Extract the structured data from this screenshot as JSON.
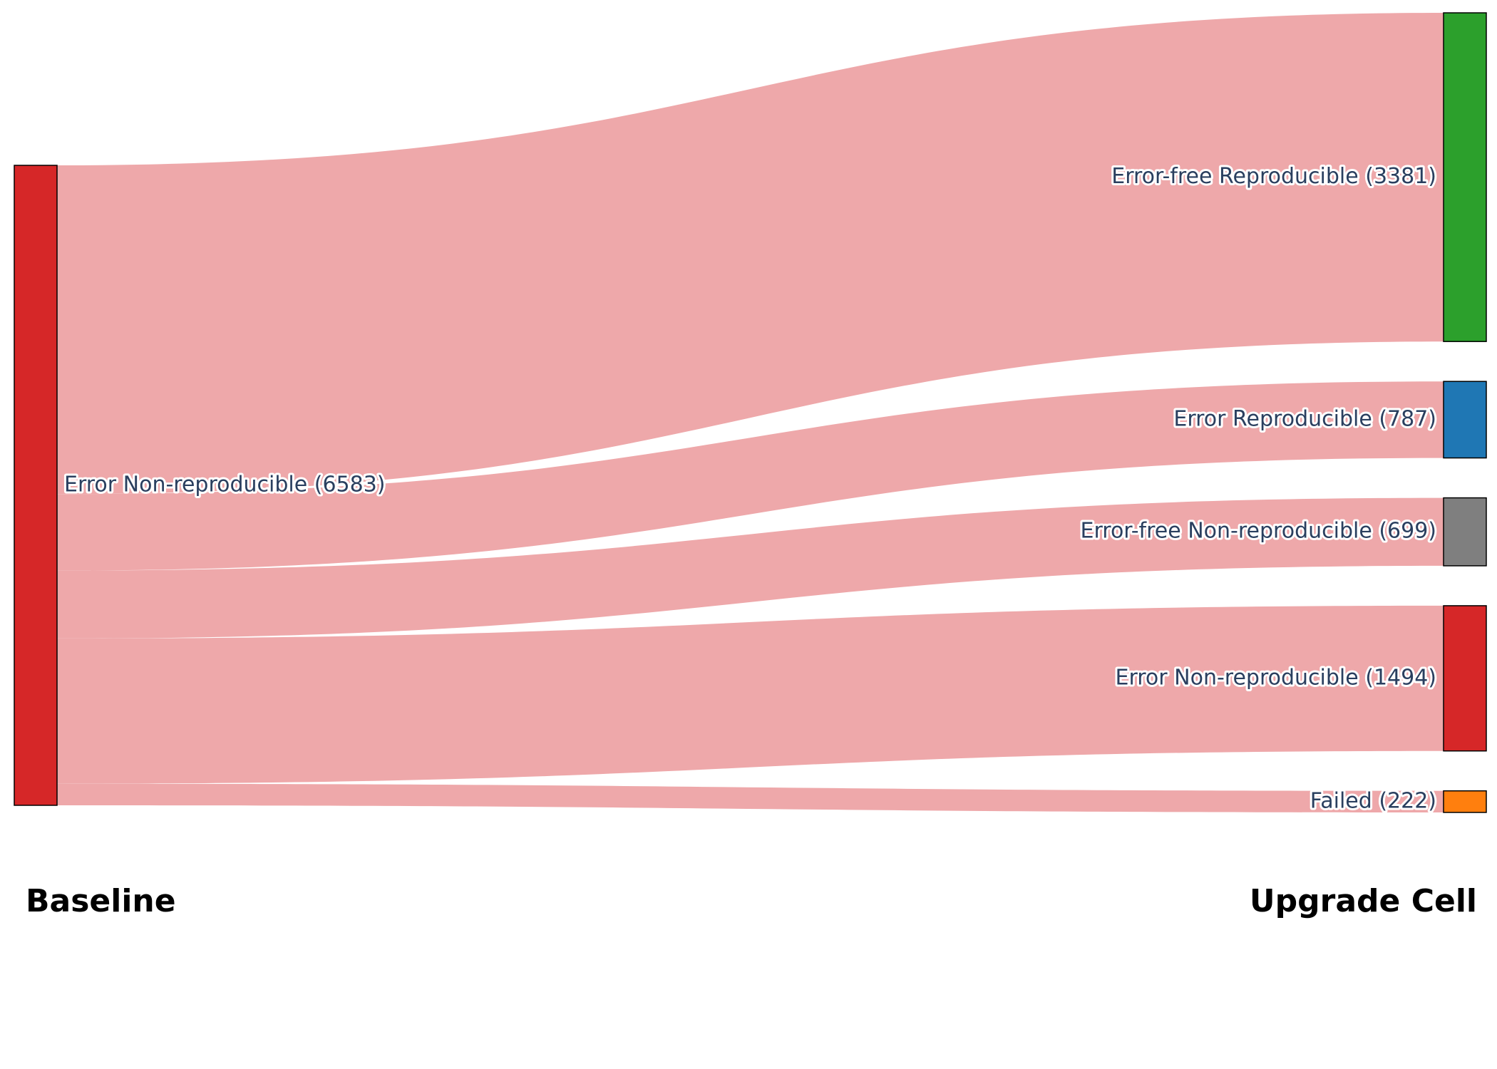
{
  "columns": {
    "left": "Baseline",
    "right": "Upgrade Cell"
  },
  "link_color": "#eea8aa",
  "nodes": [
    {
      "id": "src",
      "label": "Error Non-reproducible (6583)",
      "color": "#d62728",
      "side": "left"
    },
    {
      "id": "t1",
      "label": "Error-free Reproducible (3381)",
      "color": "#2ca02c",
      "side": "right"
    },
    {
      "id": "t2",
      "label": "Error Reproducible (787)",
      "color": "#1f77b4",
      "side": "right"
    },
    {
      "id": "t3",
      "label": "Error-free Non-reproducible (699)",
      "color": "#7f7f7f",
      "side": "right"
    },
    {
      "id": "t4",
      "label": "Error Non-reproducible (1494)",
      "color": "#d62728",
      "side": "right"
    },
    {
      "id": "t5",
      "label": "Failed (222)",
      "color": "#ff7f0e",
      "side": "right"
    }
  ],
  "links": [
    {
      "source": "src",
      "target": "t1",
      "value": 3381
    },
    {
      "source": "src",
      "target": "t2",
      "value": 787
    },
    {
      "source": "src",
      "target": "t3",
      "value": 699
    },
    {
      "source": "src",
      "target": "t4",
      "value": 1494
    },
    {
      "source": "src",
      "target": "t5",
      "value": 222
    }
  ]
}
